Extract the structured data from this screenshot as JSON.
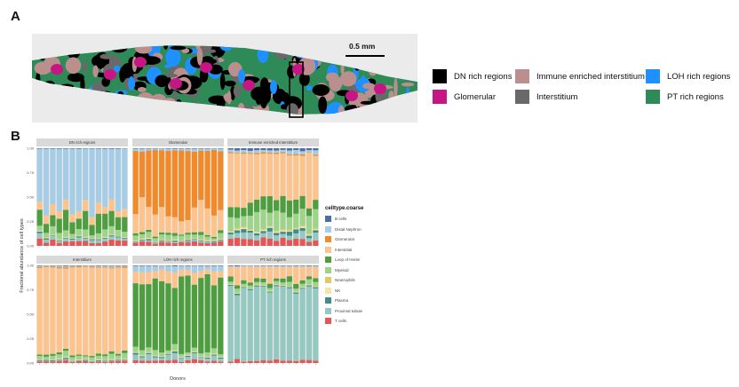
{
  "panel_a": {
    "letter": "A",
    "scale_bar_label": "0.5 mm",
    "legend": [
      {
        "label": "DN rich regions",
        "color": "#000000"
      },
      {
        "label": "Immune enriched interstitium",
        "color": "#bc8f8f"
      },
      {
        "label": "LOH rich regions",
        "color": "#1e90ff"
      },
      {
        "label": "Glomerular",
        "color": "#c71585"
      },
      {
        "label": "Interstitium",
        "color": "#696969"
      },
      {
        "label": "PT rich regions",
        "color": "#2e8b57"
      }
    ]
  },
  "panel_b": {
    "letter": "B"
  },
  "chart_data": {
    "type": "bar",
    "stacked": true,
    "facets": [
      "DN rich regions",
      "Glomerular",
      "Immune enriched interstitium",
      "Interstitium",
      "LOH rich regions",
      "PT rich regions"
    ],
    "xlabel": "Donors",
    "ylabel": "Fractional abundance of cell types",
    "ylim": [
      0,
      1
    ],
    "y_ticks": [
      "0.00",
      "0.25",
      "0.50",
      "0.75",
      "1.00"
    ],
    "legend_title": "celltype.coarse",
    "legend_position": "right",
    "n_donors": 14,
    "celltypes": [
      {
        "name": "B cells",
        "color": "#4a6fa5"
      },
      {
        "name": "Distal Nephron",
        "color": "#a6cce6"
      },
      {
        "name": "Glomerular",
        "color": "#f08a2a"
      },
      {
        "name": "Interstitial",
        "color": "#fcc38d"
      },
      {
        "name": "Loop of Henle",
        "color": "#4e9e3f"
      },
      {
        "name": "Myeloid",
        "color": "#9ed48a"
      },
      {
        "name": "Neutrophils",
        "color": "#e0c960"
      },
      {
        "name": "NK",
        "color": "#f3e7a3"
      },
      {
        "name": "Plasma",
        "color": "#3f8c8c"
      },
      {
        "name": "Proximal tubule",
        "color": "#96c8c2"
      },
      {
        "name": "T cells",
        "color": "#e55757"
      }
    ],
    "typical_composition": {
      "DN rich regions": [
        0.005,
        0.62,
        0.0,
        0.08,
        0.14,
        0.06,
        0.005,
        0.005,
        0.01,
        0.03,
        0.045
      ],
      "Glomerular": [
        0.005,
        0.02,
        0.63,
        0.22,
        0.02,
        0.04,
        0.005,
        0.005,
        0.01,
        0.01,
        0.035
      ],
      "Immune enriched interstitium": [
        0.02,
        0.03,
        0.01,
        0.5,
        0.12,
        0.15,
        0.01,
        0.01,
        0.03,
        0.05,
        0.07
      ],
      "Interstitium": [
        0.005,
        0.01,
        0.01,
        0.87,
        0.02,
        0.04,
        0.005,
        0.005,
        0.01,
        0.005,
        0.02
      ],
      "LOH rich regions": [
        0.005,
        0.05,
        0.0,
        0.1,
        0.72,
        0.04,
        0.005,
        0.005,
        0.01,
        0.04,
        0.025
      ],
      "PT rich regions": [
        0.005,
        0.01,
        0.0,
        0.14,
        0.04,
        0.04,
        0.005,
        0.005,
        0.01,
        0.72,
        0.025
      ]
    }
  }
}
